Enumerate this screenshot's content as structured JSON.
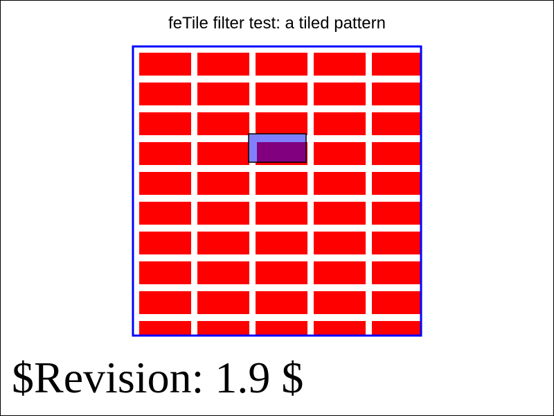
{
  "title": "feTile filter test: a tiled pattern",
  "revision": "$Revision: 1.9 $",
  "tile_grid": {
    "columns": 5,
    "rows": 10
  },
  "colors": {
    "tile": "#ff0000",
    "border": "#0000ff",
    "overlay": "#8080ff",
    "overlay_tint": "#800080",
    "overlay_stroke": "#000000",
    "frame": "#000000",
    "background": "#ffffff"
  }
}
